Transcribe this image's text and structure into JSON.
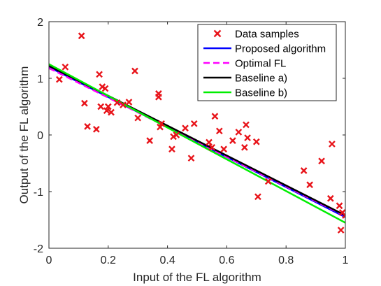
{
  "chart_data": {
    "type": "scatter",
    "title": "",
    "xlabel": "Input of the FL algorithm",
    "ylabel": "Output of the FL algorithm",
    "xlim": [
      0,
      1
    ],
    "ylim": [
      -2,
      2
    ],
    "xticks": [
      0,
      0.2,
      0.4,
      0.6,
      0.8,
      1
    ],
    "yticks": [
      -2,
      -1,
      0,
      1,
      2
    ],
    "xtick_labels": [
      "0",
      "0.2",
      "0.4",
      "0.6",
      "0.8",
      "1"
    ],
    "ytick_labels": [
      "-2",
      "-1",
      "0",
      "1",
      "2"
    ],
    "grid": false,
    "legend_position": "top-right",
    "scatter": {
      "name": "Data samples",
      "color": "#e8141a",
      "marker": "x",
      "points": [
        [
          0.035,
          0.98
        ],
        [
          0.055,
          1.2
        ],
        [
          0.11,
          1.75
        ],
        [
          0.12,
          0.56
        ],
        [
          0.13,
          0.15
        ],
        [
          0.16,
          0.1
        ],
        [
          0.17,
          1.07
        ],
        [
          0.175,
          0.5
        ],
        [
          0.18,
          0.85
        ],
        [
          0.19,
          0.82
        ],
        [
          0.195,
          0.43
        ],
        [
          0.2,
          0.5
        ],
        [
          0.21,
          0.4
        ],
        [
          0.23,
          0.57
        ],
        [
          0.25,
          0.53
        ],
        [
          0.27,
          0.58
        ],
        [
          0.29,
          1.13
        ],
        [
          0.3,
          0.3
        ],
        [
          0.34,
          -0.1
        ],
        [
          0.37,
          0.73
        ],
        [
          0.37,
          0.67
        ],
        [
          0.375,
          0.14
        ],
        [
          0.38,
          0.2
        ],
        [
          0.415,
          -0.25
        ],
        [
          0.42,
          -0.03
        ],
        [
          0.43,
          0.0
        ],
        [
          0.46,
          0.12
        ],
        [
          0.48,
          -0.41
        ],
        [
          0.49,
          0.2
        ],
        [
          0.54,
          -0.13
        ],
        [
          0.55,
          -0.22
        ],
        [
          0.56,
          0.33
        ],
        [
          0.575,
          0.07
        ],
        [
          0.59,
          -0.25
        ],
        [
          0.62,
          -0.1
        ],
        [
          0.64,
          0.05
        ],
        [
          0.66,
          -0.22
        ],
        [
          0.665,
          0.18
        ],
        [
          0.67,
          -0.05
        ],
        [
          0.7,
          -0.12
        ],
        [
          0.705,
          -1.09
        ],
        [
          0.74,
          -0.82
        ],
        [
          0.86,
          -0.63
        ],
        [
          0.88,
          -0.88
        ],
        [
          0.92,
          -0.46
        ],
        [
          0.95,
          -1.12
        ],
        [
          0.955,
          -0.16
        ],
        [
          0.98,
          -1.25
        ],
        [
          0.985,
          -1.68
        ],
        [
          0.99,
          -1.37
        ],
        [
          1.0,
          -1.42
        ]
      ]
    },
    "series": [
      {
        "name": "Proposed algorithm",
        "color": "#0000ff",
        "dash": "solid",
        "x": [
          0,
          1
        ],
        "y": [
          1.2,
          -1.45
        ]
      },
      {
        "name": "Optimal FL",
        "color": "#ff00ff",
        "dash": "dashed",
        "x": [
          0,
          1
        ],
        "y": [
          1.18,
          -1.43
        ]
      },
      {
        "name": "Baseline a)",
        "color": "#000000",
        "dash": "solid",
        "x": [
          0,
          1
        ],
        "y": [
          1.22,
          -1.42
        ]
      },
      {
        "name": "Baseline b)",
        "color": "#00ee00",
        "dash": "solid",
        "x": [
          0,
          1
        ],
        "y": [
          1.25,
          -1.55
        ]
      }
    ]
  }
}
